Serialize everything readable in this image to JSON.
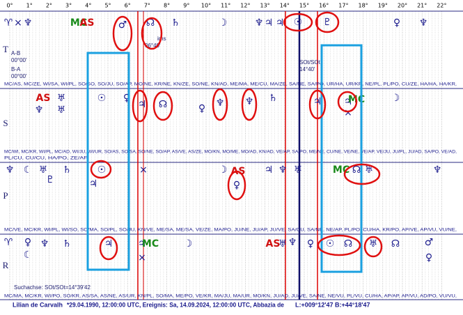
{
  "degree_axis": [
    "0°",
    "1°",
    "2°",
    "3°",
    "4°",
    "5°",
    "6°",
    "7°",
    "8°",
    "9°",
    "10°",
    "11°",
    "12°",
    "13°",
    "14°",
    "15°",
    "16°",
    "17°",
    "18°",
    "19°",
    "20°",
    "21°",
    "22°"
  ],
  "rows": [
    {
      "label": "T",
      "glyphs": [
        "♈",
        "×",
        "♆",
        "MC",
        "AS",
        "♂",
        "☊",
        "♄",
        "☽",
        "♆",
        "♃",
        "♃",
        "☉",
        "♇",
        "♀",
        "♆"
      ]
    },
    {
      "label": "S",
      "glyphs": [
        "AS",
        "♆",
        "♅",
        "♅",
        "☉",
        "♀",
        "♃",
        "☊",
        "♀",
        "♆",
        "♆",
        "♄",
        "♃",
        "♃",
        "MC",
        "×",
        "☽"
      ]
    },
    {
      "label": "P",
      "glyphs": [
        "♆",
        "☾",
        "♅",
        "♇",
        "♄",
        "☉",
        "♃",
        "×",
        "☽",
        "AS",
        "♀",
        "♃",
        "♆",
        "♅",
        "MC",
        "☊",
        "♅",
        "♆"
      ]
    },
    {
      "label": "R",
      "glyphs": [
        "♈",
        "♀",
        "♆",
        "♄",
        "♃",
        "♃",
        "MC",
        "☽",
        "AS",
        "♅",
        "♆",
        "♀",
        "☉",
        "☊",
        "♅",
        "☊",
        "♂",
        "☾",
        "×",
        "♀"
      ]
    }
  ],
  "notes": {
    "ab": "A-B",
    "ab_value": "00°00'",
    "ba": "B-A",
    "ba_value": "00°00'",
    "sot": "SOt/SOt",
    "sot_value": "14°40'",
    "ims": "ims",
    "ims_value": "06°40'"
  },
  "midpoint_lines": [
    "MC/AS, MC/ZE, WI/SA, WI/PL, SO/SO, SO/JU, SO/AP, MO/NE, KR/NE, KN/ZE, SO/NE, KN/AD, ME/MA, ME/CU, MA/ZE, SA/NE, SA/PO, UR/HA, UR/KR, NE/PL, PL/PO, CU/ZE, HA/HA, HA/KR,",
    "MC/WI, MC/KR, WI/PL, MC/AD, WI/JU, WI/UR, SO/AS, SO/SA, SO/NE, SO/AP, AS/VE, AS/ZE, MO/KN, MO/ME, MO/AD, KN/AD, VE/AP, SA/PO, ME/NE, CU/NE, VE/NE, VE/AP, VE/JU, JU/PL, JU/AD, SA/PO, VE/AD,",
    "PL/CU, CU/CU, HA/PO, ZE/AP",
    "MC/VE, MC/KR, WI/PL, WI/SO, SO/MA, SO/PL, SO/JU, KN/VE, ME/SA, ME/SA, VE/ZE, MA/PO, JU/NE, JU/AP, JU/VE, SA/CU, SA/NE, NE/AP, PL/PO, CU/HA, KR/PO, AP/VE, AP/VU, VU/NE,",
    "MC/MA, MC/KR, WI/PO, SO/KR, AS/SA, AS/NE, AS/UR, KN/PL, SO/MA, ME/PO, VE/KR, MA/JU, MA/UR, MO/KN, JU/AD, JU/VE, SA/NE, NE/VU, PL/VU, CU/HA, AP/AP, AP/VU, AD/PO, VU/VU,"
  ],
  "search_axis": "Suchachse: SOt/SOt=14°39'42",
  "footer": {
    "person": "Lilian de Carvalh",
    "event": "*29.04.1990, 12:00:00 UTC, Ereignis: Sa, 14.09.2024, 12:00:00 UTC, Abbazia de",
    "coords": "L:+009°12'47 B:+44°18'47"
  }
}
